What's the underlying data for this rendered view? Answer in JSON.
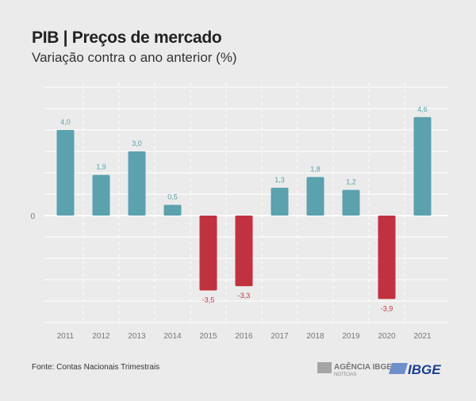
{
  "chart_data": {
    "type": "bar",
    "title": "PIB | Preços de mercado",
    "subtitle": "Variação contra o ano anterior (%)",
    "categories": [
      "2011",
      "2012",
      "2013",
      "2014",
      "2015",
      "2016",
      "2017",
      "2018",
      "2019",
      "2020",
      "2021"
    ],
    "values": [
      4.0,
      1.9,
      3.0,
      0.5,
      -3.5,
      -3.3,
      1.3,
      1.8,
      1.2,
      -3.9,
      4.6
    ],
    "data_labels": [
      "4,0",
      "1,9",
      "3,0",
      "0,5",
      "-3,5",
      "-3,3",
      "1,3",
      "1,8",
      "1,2",
      "-3,9",
      "4,6"
    ],
    "y_tick_labels": [
      "0"
    ],
    "ylim": [
      -5.1,
      6.2
    ],
    "grid": true,
    "colors": {
      "positive": "#5ba1ae",
      "negative": "#c13240"
    }
  },
  "source": "Fonte: Contas Nacionais Trimestrais",
  "logos": {
    "agencia": "AGÊNCIA IBGE",
    "agencia_sub": "NOTÍCIAS",
    "ibge": "IBGE"
  }
}
